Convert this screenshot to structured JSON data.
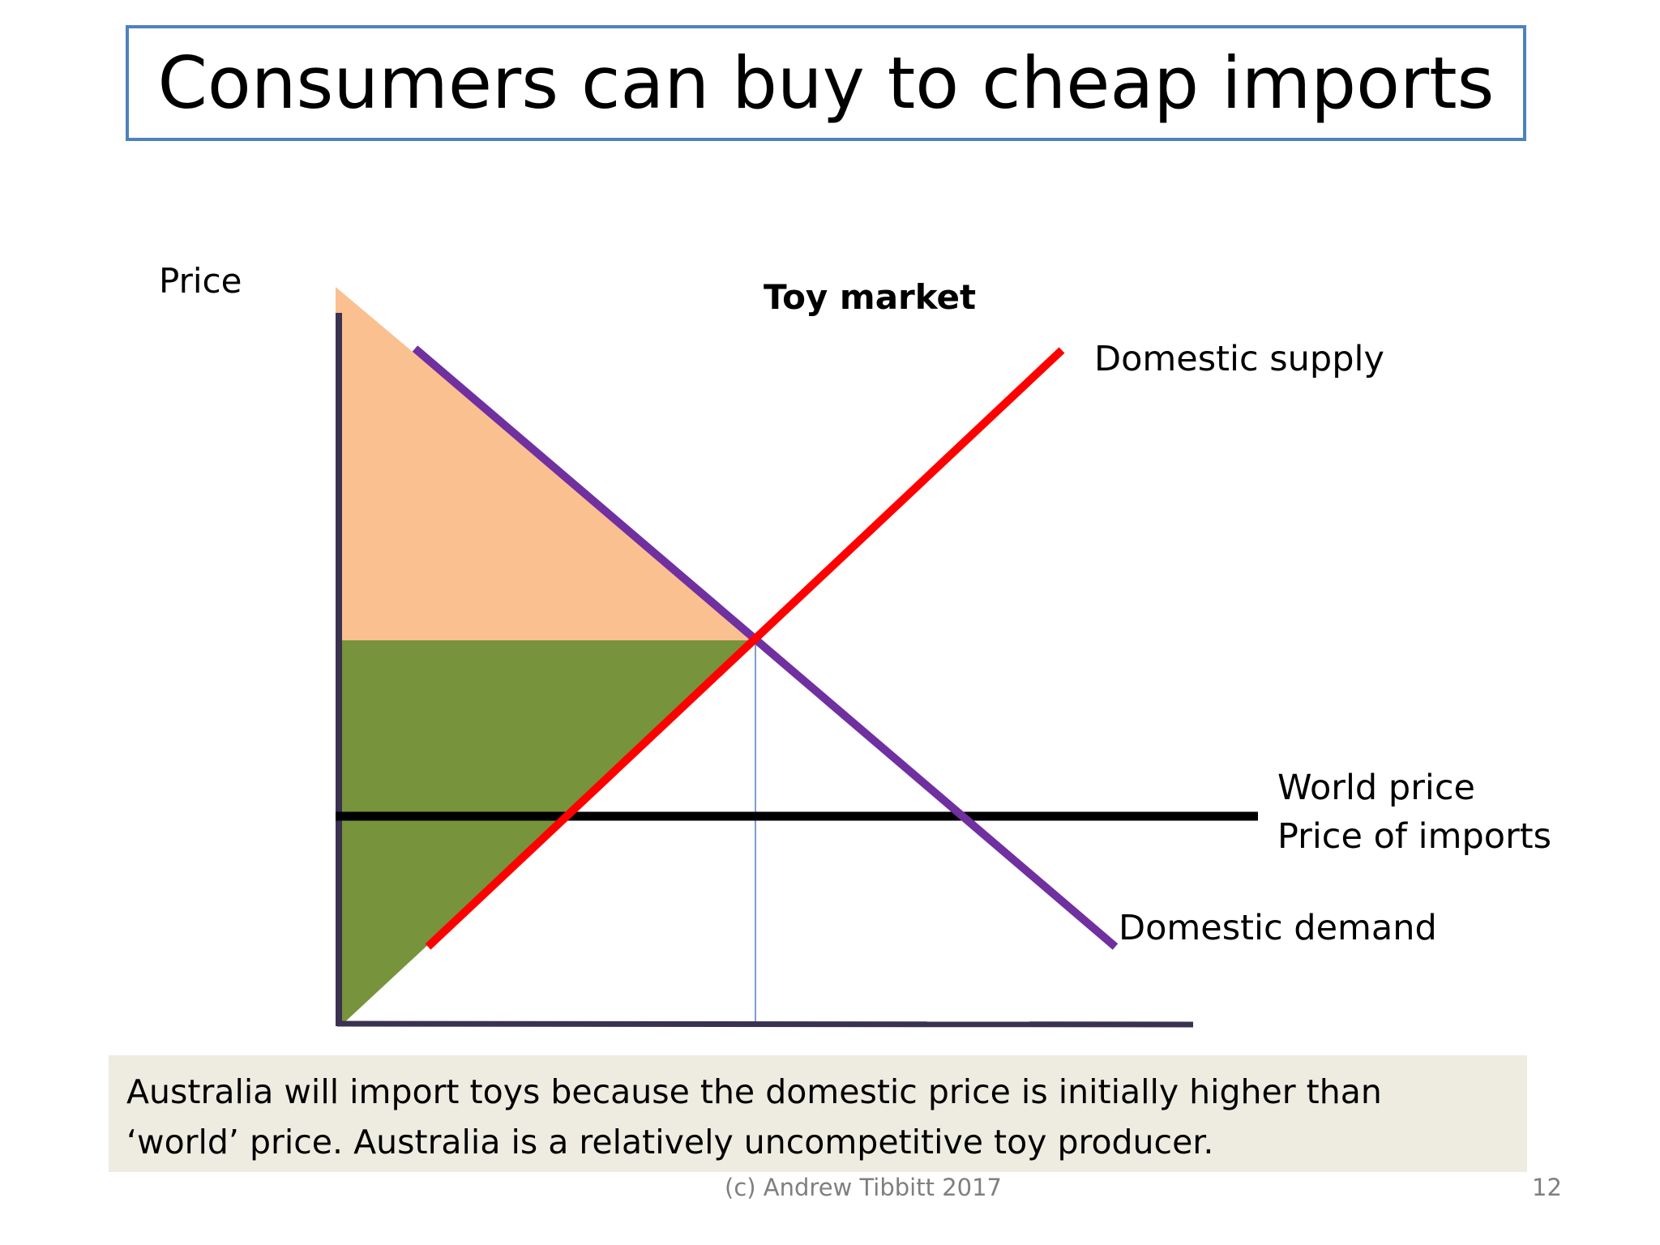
{
  "slide": {
    "title": "Consumers can buy to cheap imports",
    "caption_line1": "Australia will import toys because the domestic price is initially higher than",
    "caption_line2": "‘world’ price. Australia is a relatively uncompetitive toy producer.",
    "footer": "(c) Andrew Tibbitt 2017",
    "page_number": "12"
  },
  "diagram": {
    "y_axis_label": "Price",
    "title": "Toy market",
    "supply_label": "Domestic supply",
    "world_price_label_1": "World price",
    "world_price_label_2": "Price of imports",
    "demand_label": "Domestic demand",
    "colors": {
      "consumer_surplus": "#fac090",
      "producer_surplus": "#77933c",
      "supply_line": "#ff0000",
      "demand_line": "#7030a0",
      "world_price_line": "#000000",
      "axis": "#3b3150",
      "equilibrium_guide": "#4f81bd",
      "title_border": "#4f81bd",
      "caption_bg": "#eeece1"
    }
  }
}
